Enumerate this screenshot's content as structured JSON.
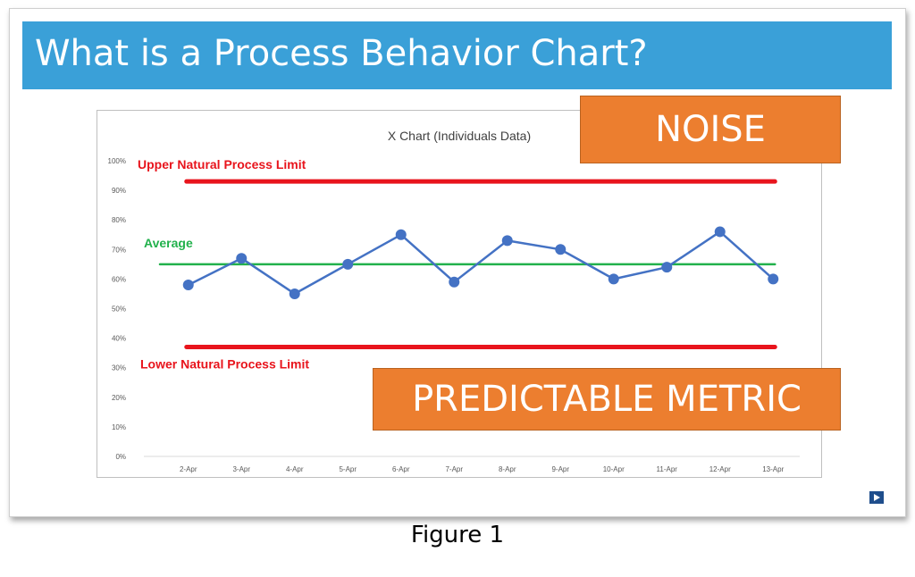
{
  "slide": {
    "title": "What is a Process Behavior Chart?",
    "callouts": {
      "noise": "NOISE",
      "predictable": "PREDICTABLE METRIC"
    },
    "nav_icon": "play-next-icon"
  },
  "caption": "Figure 1",
  "colors": {
    "banner": "#3aa0d8",
    "callout": "#ec7e2f",
    "limit_line": "#e8141c",
    "average_line": "#22b14c",
    "data_line": "#4472c4"
  },
  "chart_data": {
    "type": "line",
    "title": "X Chart (Individuals Data)",
    "categories": [
      "2-Apr",
      "3-Apr",
      "4-Apr",
      "5-Apr",
      "6-Apr",
      "7-Apr",
      "8-Apr",
      "9-Apr",
      "10-Apr",
      "11-Apr",
      "12-Apr",
      "13-Apr"
    ],
    "series": [
      {
        "values": [
          58,
          67,
          55,
          65,
          75,
          59,
          73,
          70,
          60,
          64,
          76,
          60
        ]
      }
    ],
    "y_ticks": [
      "0%",
      "10%",
      "20%",
      "30%",
      "40%",
      "50%",
      "60%",
      "70%",
      "80%",
      "90%",
      "100%"
    ],
    "ylim": [
      0,
      100
    ],
    "reference_lines": [
      {
        "label": "Upper Natural Process Limit",
        "value": 93,
        "color": "#e8141c"
      },
      {
        "label": "Average",
        "value": 65,
        "color": "#22b14c"
      },
      {
        "label": "Lower Natural Process Limit",
        "value": 37,
        "color": "#e8141c"
      }
    ],
    "grid": false
  }
}
